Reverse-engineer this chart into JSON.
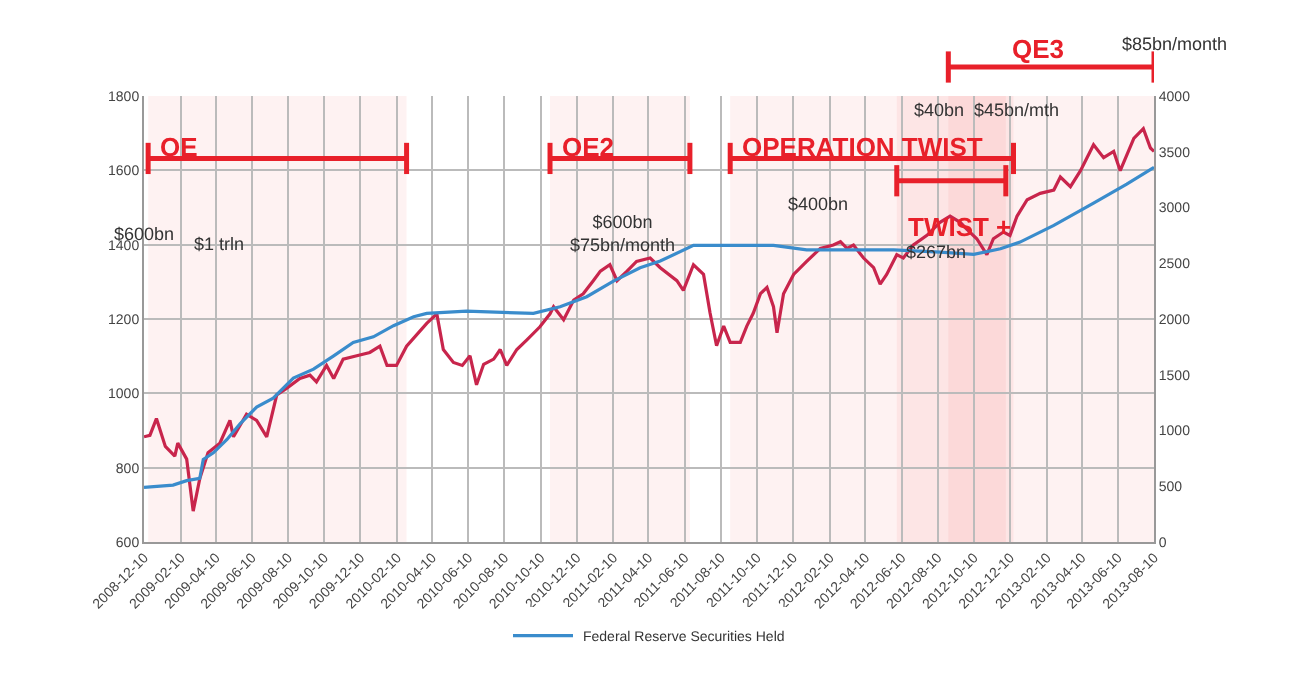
{
  "chart_data": {
    "type": "line",
    "xlim": [
      "2008-12-10",
      "2013-08-10"
    ],
    "xticks": [
      "2008-12-10",
      "2009-02-10",
      "2009-04-10",
      "2009-06-10",
      "2009-08-10",
      "2009-10-10",
      "2009-12-10",
      "2010-02-10",
      "2010-04-10",
      "2010-06-10",
      "2010-08-10",
      "2010-10-10",
      "2010-12-10",
      "2011-02-10",
      "2011-04-10",
      "2011-06-10",
      "2011-08-10",
      "2011-10-10",
      "2011-12-10",
      "2012-02-10",
      "2012-04-10",
      "2012-06-10",
      "2012-08-10",
      "2012-10-10",
      "2012-12-10",
      "2013-02-10",
      "2013-04-10",
      "2013-06-10",
      "2013-08-10"
    ],
    "ylim": [
      600,
      1800
    ],
    "yticks": [
      600,
      800,
      1000,
      1200,
      1400,
      1600,
      1800
    ],
    "y2lim": [
      0,
      4000
    ],
    "y2ticks": [
      0,
      500,
      1000,
      1500,
      2000,
      2500,
      3000,
      3500,
      4000
    ],
    "grid": true,
    "legend": "bottom",
    "marker": "none",
    "line_style": "solid",
    "series": [
      {
        "color": "#c8254c",
        "x": [
          "2008-12-10",
          "2008-12-20",
          "2008-12-31",
          "2009-01-15",
          "2009-01-31",
          "2009-02-05",
          "2009-02-20",
          "2009-03-03",
          "2009-03-14",
          "2009-03-28",
          "2009-04-17",
          "2009-05-04",
          "2009-05-10",
          "2009-06-01",
          "2009-06-18",
          "2009-07-05",
          "2009-07-22",
          "2009-08-08",
          "2009-08-30",
          "2009-09-16",
          "2009-09-27",
          "2009-10-14",
          "2009-10-26",
          "2009-11-11",
          "2009-12-04",
          "2009-12-26",
          "2010-01-12",
          "2010-01-24",
          "2010-02-09",
          "2010-02-26",
          "2010-04-01",
          "2010-04-18",
          "2010-04-29",
          "2010-05-16",
          "2010-05-31",
          "2010-06-13",
          "2010-06-24",
          "2010-07-06",
          "2010-07-23",
          "2010-08-03",
          "2010-08-14",
          "2010-08-31",
          "2010-09-17",
          "2010-10-09",
          "2010-10-26",
          "2010-11-01",
          "2010-11-18",
          "2010-12-05",
          "2010-12-21",
          "2011-01-07",
          "2011-01-19",
          "2011-02-04",
          "2011-02-16",
          "2011-03-05",
          "2011-03-21",
          "2011-04-13",
          "2011-04-30",
          "2011-05-28",
          "2011-06-08",
          "2011-06-25",
          "2011-07-12",
          "2011-07-23",
          "2011-08-03",
          "2011-08-15",
          "2011-08-26",
          "2011-09-12",
          "2011-09-23",
          "2011-10-04",
          "2011-10-16",
          "2011-10-27",
          "2011-11-07",
          "2011-11-13",
          "2011-11-24",
          "2011-12-11",
          "2012-01-02",
          "2012-01-25",
          "2012-02-16",
          "2012-02-28",
          "2012-03-10",
          "2012-03-21",
          "2012-04-07",
          "2012-04-24",
          "2012-05-05",
          "2012-05-16",
          "2012-06-02",
          "2012-06-13",
          "2012-06-30",
          "2012-07-23",
          "2012-08-14",
          "2012-08-31",
          "2012-09-17",
          "2012-09-28",
          "2012-10-15",
          "2012-11-01",
          "2012-11-12",
          "2012-11-29",
          "2012-12-10",
          "2012-12-22",
          "2013-01-08",
          "2013-01-30",
          "2013-02-22",
          "2013-03-05",
          "2013-03-22",
          "2013-04-08",
          "2013-04-30",
          "2013-05-17",
          "2013-06-03",
          "2013-06-14",
          "2013-07-07",
          "2013-07-23",
          "2013-08-04",
          "2013-08-10"
        ],
        "values": [
          883,
          887,
          932,
          857,
          831,
          866,
          823,
          683,
          770,
          840,
          866,
          927,
          883,
          944,
          927,
          883,
          996,
          1014,
          1040,
          1049,
          1031,
          1075,
          1040,
          1092,
          1101,
          1110,
          1127,
          1075,
          1075,
          1127,
          1188,
          1214,
          1118,
          1083,
          1075,
          1101,
          1023,
          1078,
          1092,
          1118,
          1075,
          1118,
          1144,
          1179,
          1214,
          1233,
          1198,
          1251,
          1268,
          1303,
          1329,
          1346,
          1303,
          1329,
          1355,
          1364,
          1338,
          1303,
          1277,
          1346,
          1320,
          1216,
          1128,
          1181,
          1137,
          1137,
          1181,
          1216,
          1268,
          1285,
          1233,
          1163,
          1268,
          1320,
          1355,
          1390,
          1399,
          1408,
          1390,
          1399,
          1364,
          1338,
          1294,
          1320,
          1373,
          1364,
          1399,
          1425,
          1460,
          1477,
          1460,
          1442,
          1416,
          1373,
          1416,
          1434,
          1425,
          1477,
          1521,
          1538,
          1547,
          1582,
          1556,
          1599,
          1669,
          1634,
          1651,
          1599,
          1686,
          1712,
          1660,
          1651
        ]
      },
      {
        "name": "Federal Reserve Securities Held",
        "color": "#3a8ccc",
        "axis": "y2",
        "x": [
          "2008-12-10",
          "2009-01-28",
          "2009-02-20",
          "2009-03-14",
          "2009-03-20",
          "2009-04-06",
          "2009-04-29",
          "2009-05-21",
          "2009-06-18",
          "2009-07-16",
          "2009-08-19",
          "2009-09-22",
          "2009-10-26",
          "2009-11-28",
          "2010-01-01",
          "2010-02-04",
          "2010-03-10",
          "2010-04-01",
          "2010-06-07",
          "2010-09-28",
          "2010-11-12",
          "2010-12-27",
          "2011-02-10",
          "2011-03-27",
          "2011-04-30",
          "2011-06-25",
          "2011-11-07",
          "2012-01-02",
          "2012-05-28",
          "2012-08-14",
          "2012-10-10",
          "2012-11-24",
          "2012-12-27",
          "2013-02-22",
          "2013-04-30",
          "2013-06-25",
          "2013-08-10"
        ],
        "values": [
          490,
          510,
          550,
          570,
          740,
          800,
          920,
          1060,
          1210,
          1290,
          1470,
          1550,
          1670,
          1790,
          1840,
          1940,
          2020,
          2050,
          2070,
          2050,
          2110,
          2200,
          2340,
          2460,
          2520,
          2660,
          2660,
          2620,
          2620,
          2600,
          2580,
          2630,
          2690,
          2840,
          3040,
          3210,
          3360
        ]
      }
    ],
    "bands": [
      {
        "axis": "x",
        "from": "2008-12-17",
        "to": "2010-02-26",
        "label": "QE",
        "color": "#e8202a"
      },
      {
        "axis": "x",
        "from": "2010-10-26",
        "to": "2011-06-19",
        "label": "QE2",
        "color": "#e8202a"
      },
      {
        "axis": "x",
        "from": "2011-08-26",
        "to": "2012-12-16",
        "label": "OPERATION TWIST",
        "color": "#e8202a"
      },
      {
        "axis": "x",
        "from": "2012-06-02",
        "to": "2012-12-03",
        "label": "TWIST +",
        "color": "#e8202a"
      },
      {
        "axis": "x",
        "from": "2012-08-28",
        "to": "2013-08-10",
        "label": "QE3",
        "color": "#e8202a"
      }
    ],
    "annotations": [
      "$600bn",
      "$1 trln",
      "$600bn\n$75bn/month",
      "$400bn",
      "$267bn",
      "$85bn/month",
      "$40bn  $45bn/mth"
    ]
  }
}
